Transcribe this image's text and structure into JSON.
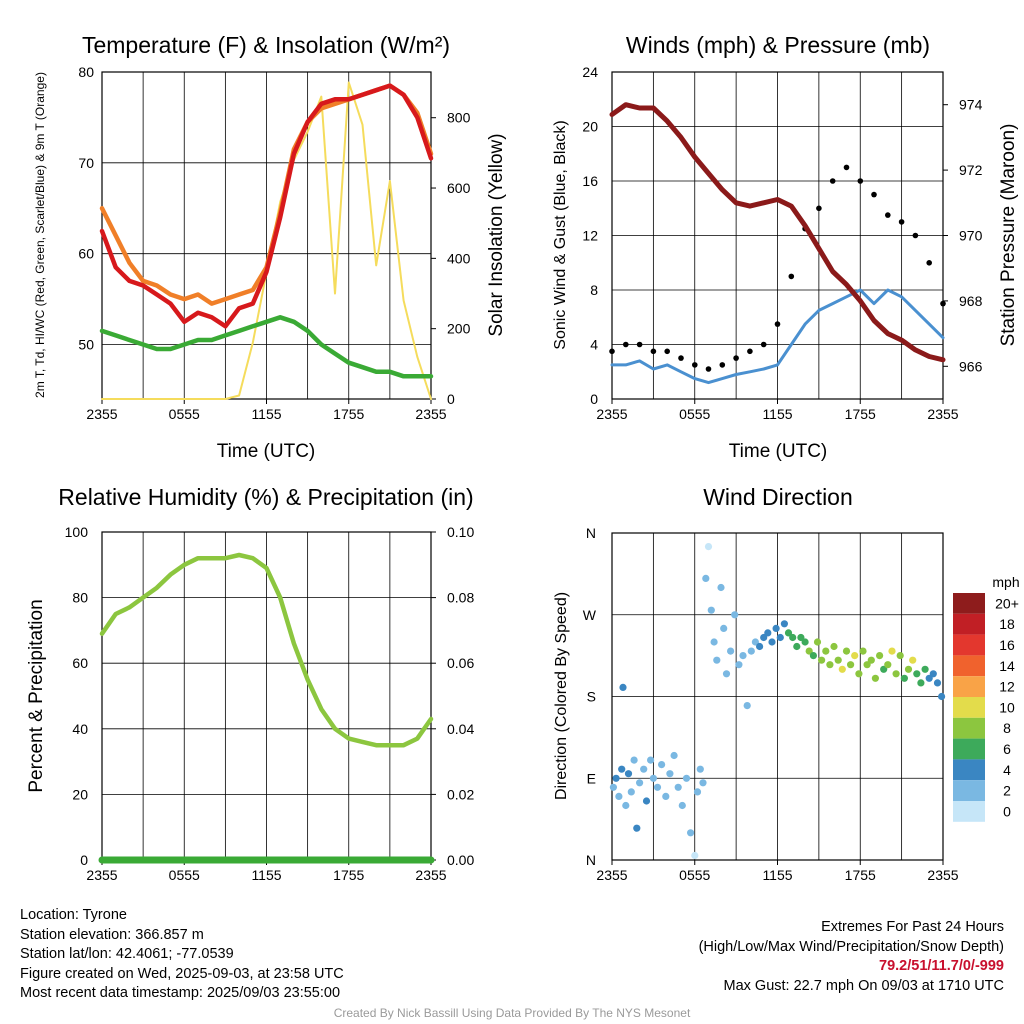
{
  "colors": {
    "temp": "#d7191c",
    "dewpoint": "#3aaa35",
    "hiwc": "#c8232c",
    "temp9m": "#f07f28",
    "solar": "#f5dc5c",
    "wind": "#4a90d0",
    "gust": "#000000",
    "pressure": "#8b1a1a",
    "rh": "#8cc63f",
    "precip": "#3aaa35",
    "extremes": "#c8102e",
    "credit": "#9a9a9a"
  },
  "chart_data": [
    {
      "type": "line",
      "title": "Temperature (F) & Insolation (W/m²)",
      "xlabel": "Time (UTC)",
      "ylabel": "2m T, Td, HI/WC (Red, Green, Scarlet/Blue) & 9m T (Orange)",
      "y2label": "Solar Insolation (Yellow)",
      "x_ticks": [
        "2355",
        "0555",
        "1155",
        "1755",
        "2355"
      ],
      "y_ticks": [
        50,
        60,
        70,
        80
      ],
      "y2_ticks": [
        0,
        200,
        400,
        600,
        800
      ],
      "ylim": [
        44,
        80
      ],
      "y2lim": [
        0,
        930
      ],
      "x_hours": [
        0,
        1,
        2,
        3,
        4,
        5,
        6,
        7,
        8,
        9,
        10,
        11,
        12,
        13,
        14,
        15,
        16,
        17,
        18,
        19,
        20,
        21,
        22,
        23,
        24
      ],
      "series": [
        {
          "name": "2m T",
          "axis": "left",
          "values": [
            62.5,
            58.5,
            57,
            56.5,
            55.5,
            54.5,
            52.5,
            53.5,
            53,
            52,
            54,
            54.5,
            58,
            64,
            71,
            74.5,
            76.5,
            77,
            77,
            77.5,
            78,
            78.5,
            77.5,
            75,
            70.5
          ]
        },
        {
          "name": "Td",
          "axis": "left",
          "values": [
            51.5,
            51,
            50.5,
            50,
            49.5,
            49.5,
            50,
            50.5,
            50.5,
            51,
            51.5,
            52,
            52.5,
            53,
            52.5,
            51.5,
            50,
            49,
            48,
            47.5,
            47,
            47,
            46.5,
            46.5,
            46.5
          ]
        },
        {
          "name": "9m T",
          "axis": "left",
          "values": [
            65,
            62,
            59,
            57,
            56.5,
            55.5,
            55,
            55.5,
            54.5,
            55,
            55.5,
            56,
            58.5,
            64.5,
            71.5,
            74.5,
            76,
            76.5,
            77,
            77.5,
            78,
            78.5,
            77.5,
            75.5,
            71
          ]
        },
        {
          "name": "Solar",
          "axis": "right",
          "values": [
            0,
            0,
            0,
            0,
            0,
            0,
            0,
            0,
            0,
            0,
            10,
            160,
            360,
            560,
            680,
            760,
            860,
            300,
            900,
            780,
            380,
            620,
            280,
            120,
            0
          ]
        }
      ]
    },
    {
      "type": "line",
      "title": "Winds (mph) & Pressure (mb)",
      "xlabel": "Time (UTC)",
      "ylabel": "Sonic Wind & Gust (Blue, Black)",
      "y2label": "Station Pressure (Maroon)",
      "x_ticks": [
        "2355",
        "0555",
        "1155",
        "1755",
        "2355"
      ],
      "y_ticks": [
        0,
        4,
        8,
        12,
        16,
        20,
        24
      ],
      "y2_ticks": [
        966,
        968,
        970,
        972,
        974
      ],
      "ylim": [
        0,
        24
      ],
      "y2lim": [
        965.0,
        975.0
      ],
      "x_hours": [
        0,
        1,
        2,
        3,
        4,
        5,
        6,
        7,
        8,
        9,
        10,
        11,
        12,
        13,
        14,
        15,
        16,
        17,
        18,
        19,
        20,
        21,
        22,
        23,
        24
      ],
      "series": [
        {
          "name": "Sonic Wind",
          "axis": "left",
          "values": [
            2.5,
            2.5,
            2.8,
            2.2,
            2.5,
            2,
            1.5,
            1.2,
            1.5,
            1.8,
            2,
            2.2,
            2.5,
            4,
            5.5,
            6.5,
            7,
            7.5,
            8,
            7,
            8,
            7.5,
            6.5,
            5.5,
            4.5
          ]
        },
        {
          "name": "Gust",
          "axis": "left",
          "values": [
            3.5,
            4,
            4,
            3.5,
            3.5,
            3,
            2.5,
            2.2,
            2.5,
            3,
            3.5,
            4,
            5.5,
            9,
            12.5,
            14,
            16,
            17,
            16,
            15,
            13.5,
            13,
            12,
            10,
            7
          ]
        },
        {
          "name": "Pressure",
          "axis": "right",
          "values": [
            973.7,
            974.0,
            973.9,
            973.9,
            973.5,
            973.0,
            972.4,
            971.9,
            971.4,
            971.0,
            970.9,
            971.0,
            971.1,
            970.9,
            970.3,
            969.6,
            968.9,
            968.5,
            968.0,
            967.4,
            967.0,
            966.8,
            966.5,
            966.3,
            966.2
          ]
        }
      ]
    },
    {
      "type": "line",
      "title": "Relative Humidity (%) & Precipitation (in)",
      "ylabel": "Percent & Precipitation",
      "x_ticks": [
        "2355",
        "0555",
        "1155",
        "1755",
        "2355"
      ],
      "y_ticks": [
        0,
        20,
        40,
        60,
        80,
        100
      ],
      "y2_ticks": [
        "0.00",
        "0.02",
        "0.04",
        "0.06",
        "0.08",
        "0.10"
      ],
      "ylim": [
        0,
        100
      ],
      "y2lim": [
        0,
        0.1
      ],
      "x_hours": [
        0,
        1,
        2,
        3,
        4,
        5,
        6,
        7,
        8,
        9,
        10,
        11,
        12,
        13,
        14,
        15,
        16,
        17,
        18,
        19,
        20,
        21,
        22,
        23,
        24
      ],
      "series": [
        {
          "name": "Relative Humidity",
          "axis": "left",
          "values": [
            69,
            75,
            77,
            80,
            83,
            87,
            90,
            92,
            92,
            92,
            93,
            92,
            89,
            80,
            66,
            55,
            46,
            40,
            37,
            36,
            35,
            35,
            35,
            37,
            43
          ]
        },
        {
          "name": "Precipitation",
          "axis": "right",
          "values": [
            0,
            0,
            0,
            0,
            0,
            0,
            0,
            0,
            0,
            0,
            0,
            0,
            0,
            0,
            0,
            0,
            0,
            0,
            0,
            0,
            0,
            0,
            0,
            0,
            0
          ]
        }
      ]
    },
    {
      "type": "scatter",
      "title": "Wind Direction",
      "ylabel": "Direction (Colored By Speed)",
      "x_ticks": [
        "2355",
        "0555",
        "1155",
        "1755",
        "2355"
      ],
      "y_ticks": [
        "N",
        "E",
        "S",
        "W",
        "N"
      ],
      "ylim": [
        0,
        360
      ],
      "legend": {
        "title": "mph",
        "labels": [
          "20+",
          "18",
          "16",
          "14",
          "12",
          "10",
          "8",
          "6",
          "4",
          "2",
          "0"
        ],
        "colors": [
          "#8e1c1c",
          "#c11f25",
          "#e3372e",
          "#f0622d",
          "#f9a347",
          "#e3dc4b",
          "#8cc63f",
          "#3daa5b",
          "#3a86c2",
          "#7ab8e2",
          "#c6e6f8"
        ]
      },
      "points": [
        {
          "x": 0.1,
          "y": 80,
          "speed": 2.5
        },
        {
          "x": 0.3,
          "y": 90,
          "speed": 3
        },
        {
          "x": 0.5,
          "y": 70,
          "speed": 2.5
        },
        {
          "x": 0.7,
          "y": 100,
          "speed": 3
        },
        {
          "x": 0.8,
          "y": 190,
          "speed": 4.2
        },
        {
          "x": 1.0,
          "y": 60,
          "speed": 2.5
        },
        {
          "x": 1.2,
          "y": 95,
          "speed": 3
        },
        {
          "x": 1.4,
          "y": 75,
          "speed": 2
        },
        {
          "x": 1.6,
          "y": 110,
          "speed": 2.5
        },
        {
          "x": 1.8,
          "y": 35,
          "speed": 3.5
        },
        {
          "x": 2.0,
          "y": 85,
          "speed": 2.5
        },
        {
          "x": 2.3,
          "y": 100,
          "speed": 2
        },
        {
          "x": 2.5,
          "y": 65,
          "speed": 3
        },
        {
          "x": 2.8,
          "y": 110,
          "speed": 2
        },
        {
          "x": 3.0,
          "y": 90,
          "speed": 2.5
        },
        {
          "x": 3.3,
          "y": 80,
          "speed": 2
        },
        {
          "x": 3.6,
          "y": 105,
          "speed": 1.5
        },
        {
          "x": 3.9,
          "y": 70,
          "speed": 2.5
        },
        {
          "x": 4.2,
          "y": 95,
          "speed": 2
        },
        {
          "x": 4.5,
          "y": 115,
          "speed": 1.5
        },
        {
          "x": 4.8,
          "y": 80,
          "speed": 2
        },
        {
          "x": 5.1,
          "y": 60,
          "speed": 1.5
        },
        {
          "x": 5.4,
          "y": 90,
          "speed": 2
        },
        {
          "x": 5.7,
          "y": 30,
          "speed": 1
        },
        {
          "x": 6.0,
          "y": 5,
          "speed": 0.5
        },
        {
          "x": 6.2,
          "y": 75,
          "speed": 1.5
        },
        {
          "x": 6.4,
          "y": 100,
          "speed": 2.5
        },
        {
          "x": 6.6,
          "y": 85,
          "speed": 2
        },
        {
          "x": 6.8,
          "y": 310,
          "speed": 1
        },
        {
          "x": 7.0,
          "y": 345,
          "speed": 0.5
        },
        {
          "x": 7.2,
          "y": 275,
          "speed": 1.5
        },
        {
          "x": 7.4,
          "y": 240,
          "speed": 1.5
        },
        {
          "x": 7.6,
          "y": 220,
          "speed": 2
        },
        {
          "x": 7.9,
          "y": 300,
          "speed": 1
        },
        {
          "x": 8.1,
          "y": 255,
          "speed": 1.5
        },
        {
          "x": 8.3,
          "y": 205,
          "speed": 2
        },
        {
          "x": 8.6,
          "y": 230,
          "speed": 1.5
        },
        {
          "x": 8.9,
          "y": 270,
          "speed": 1
        },
        {
          "x": 9.2,
          "y": 215,
          "speed": 1.5
        },
        {
          "x": 9.5,
          "y": 225,
          "speed": 2
        },
        {
          "x": 9.8,
          "y": 170,
          "speed": 1.5
        },
        {
          "x": 10.1,
          "y": 230,
          "speed": 2.5
        },
        {
          "x": 10.4,
          "y": 240,
          "speed": 2.5
        },
        {
          "x": 10.7,
          "y": 235,
          "speed": 3
        },
        {
          "x": 11.0,
          "y": 245,
          "speed": 3.5
        },
        {
          "x": 11.3,
          "y": 250,
          "speed": 4
        },
        {
          "x": 11.6,
          "y": 240,
          "speed": 4
        },
        {
          "x": 11.9,
          "y": 255,
          "speed": 4.5
        },
        {
          "x": 12.2,
          "y": 245,
          "speed": 4
        },
        {
          "x": 12.5,
          "y": 260,
          "speed": 4.5
        },
        {
          "x": 12.8,
          "y": 250,
          "speed": 5
        },
        {
          "x": 13.1,
          "y": 245,
          "speed": 5
        },
        {
          "x": 13.4,
          "y": 235,
          "speed": 5.5
        },
        {
          "x": 13.7,
          "y": 245,
          "speed": 6
        },
        {
          "x": 14.0,
          "y": 240,
          "speed": 6.5
        },
        {
          "x": 14.3,
          "y": 230,
          "speed": 7
        },
        {
          "x": 14.6,
          "y": 225,
          "speed": 6.5
        },
        {
          "x": 14.9,
          "y": 240,
          "speed": 7
        },
        {
          "x": 15.2,
          "y": 220,
          "speed": 7.5
        },
        {
          "x": 15.5,
          "y": 230,
          "speed": 8
        },
        {
          "x": 15.8,
          "y": 215,
          "speed": 8
        },
        {
          "x": 16.1,
          "y": 235,
          "speed": 7.5
        },
        {
          "x": 16.4,
          "y": 220,
          "speed": 8.5
        },
        {
          "x": 16.7,
          "y": 210,
          "speed": 9
        },
        {
          "x": 17.0,
          "y": 230,
          "speed": 8
        },
        {
          "x": 17.3,
          "y": 215,
          "speed": 8.5
        },
        {
          "x": 17.6,
          "y": 225,
          "speed": 9.5
        },
        {
          "x": 17.9,
          "y": 205,
          "speed": 8
        },
        {
          "x": 18.2,
          "y": 230,
          "speed": 7.5
        },
        {
          "x": 18.5,
          "y": 215,
          "speed": 7
        },
        {
          "x": 18.8,
          "y": 220,
          "speed": 8
        },
        {
          "x": 19.1,
          "y": 200,
          "speed": 7.5
        },
        {
          "x": 19.4,
          "y": 225,
          "speed": 7
        },
        {
          "x": 19.7,
          "y": 210,
          "speed": 6.5
        },
        {
          "x": 20.0,
          "y": 215,
          "speed": 8
        },
        {
          "x": 20.3,
          "y": 230,
          "speed": 9
        },
        {
          "x": 20.6,
          "y": 205,
          "speed": 7.5
        },
        {
          "x": 20.9,
          "y": 225,
          "speed": 8
        },
        {
          "x": 21.2,
          "y": 200,
          "speed": 6
        },
        {
          "x": 21.5,
          "y": 210,
          "speed": 7
        },
        {
          "x": 21.8,
          "y": 220,
          "speed": 9
        },
        {
          "x": 22.1,
          "y": 205,
          "speed": 6.5
        },
        {
          "x": 22.4,
          "y": 195,
          "speed": 5
        },
        {
          "x": 22.7,
          "y": 210,
          "speed": 5
        },
        {
          "x": 23.0,
          "y": 200,
          "speed": 4.5
        },
        {
          "x": 23.3,
          "y": 205,
          "speed": 4
        },
        {
          "x": 23.6,
          "y": 195,
          "speed": 4
        },
        {
          "x": 23.9,
          "y": 180,
          "speed": 3.5
        }
      ]
    }
  ],
  "info": {
    "location": "Location: Tyrone",
    "elevation": "Station elevation: 366.857 m",
    "latlon": "Station lat/lon: 42.4061; -77.0539",
    "created": "Figure created on Wed, 2025-09-03, at 23:58 UTC",
    "recent": "Most recent data timestamp: 2025/09/03 23:55:00"
  },
  "extremes": {
    "title": "Extremes For Past 24 Hours",
    "subtitle": "(High/Low/Max Wind/Precipitation/Snow Depth)",
    "values": "79.2/51/11.7/0/-999",
    "gust": "Max Gust: 22.7 mph On 09/03 at 1710 UTC"
  },
  "credit": "Created By Nick Bassill Using Data Provided By The NYS Mesonet"
}
